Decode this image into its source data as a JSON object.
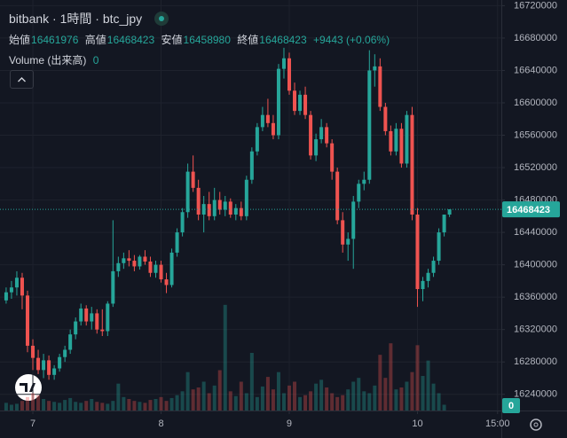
{
  "header": {
    "title": "bitbank · 1時間 · btc_jpy",
    "open_label": "始値",
    "open": 16461976,
    "high_label": "高値",
    "high": 16468423,
    "low_label": "安値",
    "low": 16458980,
    "close_label": "終値",
    "close": 16468423,
    "change": "+9443 (+0.06%)",
    "volume_label": "Volume (出来高)",
    "volume": 0
  },
  "chart_data": {
    "type": "candlestick",
    "x": [
      -5,
      -4,
      -3,
      -2,
      -1,
      0,
      1,
      2,
      3,
      4,
      5,
      6,
      7,
      8,
      9,
      10,
      11,
      12,
      13,
      14,
      15,
      16,
      17,
      18,
      19,
      20,
      21,
      22,
      23,
      24,
      25,
      26,
      27,
      28,
      29,
      30,
      31,
      32,
      33,
      34,
      35,
      36,
      37,
      38,
      39,
      40,
      41,
      42,
      43,
      44,
      45,
      46,
      47,
      48,
      49,
      50,
      51,
      52,
      53,
      54,
      55,
      56,
      57,
      58,
      59,
      60,
      61,
      62,
      63,
      64,
      65,
      66,
      67,
      68,
      69,
      70,
      71,
      72,
      73,
      74,
      75,
      76,
      77,
      78
    ],
    "open": [
      16356000,
      16366000,
      16372000,
      16384000,
      16362000,
      16300000,
      16285000,
      16270000,
      16282000,
      16264000,
      16272000,
      16286000,
      16295000,
      16314000,
      16330000,
      16346000,
      16330000,
      16340000,
      16320000,
      16318000,
      16352000,
      16392000,
      16402000,
      16408000,
      16405000,
      16398000,
      16410000,
      16404000,
      16390000,
      16400000,
      16382000,
      16375000,
      16415000,
      16440000,
      16465000,
      16515000,
      16495000,
      16462000,
      16475000,
      16460000,
      16480000,
      16468000,
      16478000,
      16462000,
      16470000,
      16460000,
      16505000,
      16540000,
      16570000,
      16585000,
      16575000,
      16560000,
      16642000,
      16655000,
      16615000,
      16590000,
      16610000,
      16585000,
      16535000,
      16555000,
      16570000,
      16550000,
      16515000,
      16455000,
      16425000,
      16432000,
      16478000,
      16500000,
      16505000,
      16640000,
      16645000,
      16595000,
      16565000,
      16540000,
      16568000,
      16525000,
      16585000,
      16462000,
      16370000,
      16380000,
      16390000,
      16405000,
      16440000,
      16461976
    ],
    "high": [
      16372000,
      16380000,
      16392000,
      16390000,
      16368000,
      16308000,
      16295000,
      16290000,
      16288000,
      16276000,
      16290000,
      16300000,
      16320000,
      16335000,
      16352000,
      16350000,
      16348000,
      16345000,
      16345000,
      16355000,
      16455000,
      16410000,
      16415000,
      16418000,
      16412000,
      16412000,
      16418000,
      16410000,
      16405000,
      16405000,
      16390000,
      16420000,
      16445000,
      16470000,
      16525000,
      16535000,
      16505000,
      16485000,
      16490000,
      16495000,
      16490000,
      16485000,
      16482000,
      16475000,
      16478000,
      16510000,
      16545000,
      16575000,
      16595000,
      16605000,
      16585000,
      16648000,
      16668000,
      16662000,
      16625000,
      16615000,
      16620000,
      16590000,
      16562000,
      16580000,
      16575000,
      16555000,
      16520000,
      16465000,
      16440000,
      16485000,
      16505000,
      16515000,
      16665000,
      16660000,
      16655000,
      16600000,
      16572000,
      16575000,
      16575000,
      16590000,
      16595000,
      16470000,
      16385000,
      16395000,
      16410000,
      16445000,
      16462000,
      16468423
    ],
    "low": [
      16352000,
      16358000,
      16362000,
      16345000,
      16292000,
      16270000,
      16265000,
      16260000,
      16258000,
      16258000,
      16268000,
      16280000,
      16290000,
      16308000,
      16325000,
      16325000,
      16320000,
      16315000,
      16312000,
      16312000,
      16348000,
      16385000,
      16395000,
      16398000,
      16392000,
      16394000,
      16400000,
      16385000,
      16384000,
      16378000,
      16365000,
      16372000,
      16410000,
      16435000,
      16458000,
      16490000,
      16455000,
      16440000,
      16455000,
      16455000,
      16462000,
      16460000,
      16458000,
      16455000,
      16455000,
      16455000,
      16500000,
      16535000,
      16565000,
      16570000,
      16555000,
      16555000,
      16630000,
      16610000,
      16585000,
      16585000,
      16580000,
      16530000,
      16528000,
      16550000,
      16545000,
      16505000,
      16450000,
      16415000,
      16405000,
      16395000,
      16470000,
      16492000,
      16500000,
      16620000,
      16590000,
      16560000,
      16535000,
      16535000,
      16520000,
      16520000,
      16455000,
      16348000,
      16355000,
      16372000,
      16385000,
      16400000,
      16435000,
      16458980
    ],
    "close": [
      16366000,
      16372000,
      16384000,
      16362000,
      16300000,
      16285000,
      16270000,
      16282000,
      16264000,
      16272000,
      16286000,
      16295000,
      16314000,
      16330000,
      16346000,
      16330000,
      16340000,
      16320000,
      16318000,
      16352000,
      16392000,
      16402000,
      16408000,
      16405000,
      16398000,
      16410000,
      16404000,
      16390000,
      16400000,
      16382000,
      16375000,
      16415000,
      16440000,
      16465000,
      16515000,
      16495000,
      16462000,
      16475000,
      16460000,
      16480000,
      16468000,
      16478000,
      16462000,
      16470000,
      16460000,
      16505000,
      16540000,
      16570000,
      16585000,
      16575000,
      16560000,
      16642000,
      16655000,
      16615000,
      16590000,
      16610000,
      16585000,
      16535000,
      16555000,
      16570000,
      16550000,
      16515000,
      16455000,
      16425000,
      16432000,
      16478000,
      16500000,
      16505000,
      16640000,
      16645000,
      16595000,
      16565000,
      16540000,
      16568000,
      16525000,
      16585000,
      16462000,
      16370000,
      16380000,
      16390000,
      16405000,
      16440000,
      16461976,
      16468423
    ],
    "volume": [
      8,
      6,
      7,
      10,
      14,
      18,
      16,
      12,
      10,
      9,
      8,
      11,
      13,
      9,
      8,
      10,
      12,
      9,
      8,
      7,
      10,
      28,
      14,
      12,
      10,
      9,
      8,
      11,
      12,
      14,
      10,
      13,
      16,
      20,
      40,
      22,
      24,
      30,
      18,
      26,
      42,
      110,
      20,
      15,
      30,
      18,
      60,
      14,
      25,
      35,
      22,
      40,
      18,
      26,
      30,
      14,
      16,
      20,
      28,
      32,
      24,
      18,
      14,
      16,
      22,
      30,
      34,
      20,
      18,
      26,
      58,
      34,
      70,
      22,
      24,
      30,
      40,
      68,
      36,
      52,
      28,
      18,
      6,
      0
    ],
    "up_color": "#26a69a",
    "down_color": "#ef5350",
    "xlim": [
      -6.15,
      87.7
    ],
    "xticks": [
      {
        "value": 0,
        "label": "7"
      },
      {
        "value": 24,
        "label": "8"
      },
      {
        "value": 48,
        "label": "9"
      },
      {
        "value": 72,
        "label": "10"
      },
      {
        "value": 87,
        "label": "15:00"
      }
    ],
    "ylim": [
      16220000,
      16727000
    ],
    "yticks": [
      16240000,
      16280000,
      16320000,
      16360000,
      16400000,
      16440000,
      16480000,
      16520000,
      16560000,
      16600000,
      16640000,
      16680000,
      16720000
    ],
    "volume_ylim": [
      0,
      120
    ],
    "grid": true
  }
}
